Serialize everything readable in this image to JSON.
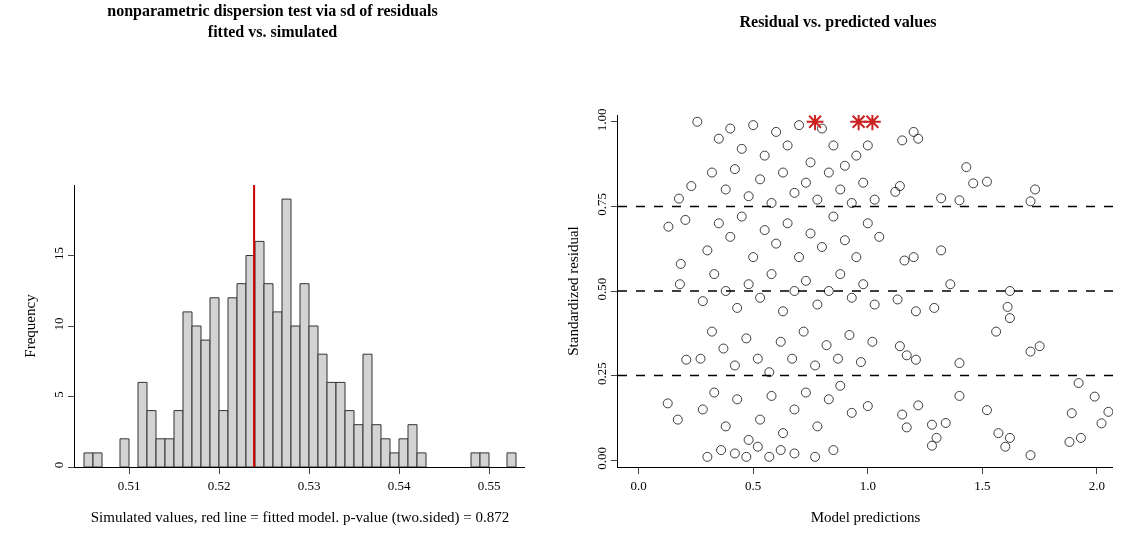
{
  "chart_data": [
    {
      "type": "histogram",
      "title": "nonparametric dispersion test via sd of residuals fitted vs. simulated",
      "xlabel": "Simulated values, red line = fitted model. p-value (two.sided) = 0.872",
      "ylabel": "Frequency",
      "color": "#d3d3d3",
      "bins": [
        0.505,
        0.506,
        0.507,
        0.508,
        0.509,
        0.51,
        0.511,
        0.512,
        0.513,
        0.514,
        0.515,
        0.516,
        0.517,
        0.518,
        0.519,
        0.52,
        0.521,
        0.522,
        0.523,
        0.524,
        0.525,
        0.526,
        0.527,
        0.528,
        0.529,
        0.53,
        0.531,
        0.532,
        0.533,
        0.534,
        0.535,
        0.536,
        0.537,
        0.538,
        0.539,
        0.54,
        0.541,
        0.542,
        0.543,
        0.544,
        0.545,
        0.546,
        0.547,
        0.548,
        0.549,
        0.55,
        0.551,
        0.552,
        0.553
      ],
      "values": [
        1,
        1,
        0,
        0,
        2,
        0,
        6,
        4,
        2,
        2,
        4,
        11,
        10,
        9,
        12,
        4,
        12,
        13,
        15,
        16,
        13,
        11,
        19,
        10,
        13,
        10,
        8,
        6,
        6,
        4,
        3,
        8,
        3,
        2,
        1,
        2,
        3,
        1,
        0,
        0,
        0,
        0,
        0,
        1,
        1,
        0,
        0,
        1
      ],
      "xlim": [
        0.504,
        0.554
      ],
      "xticks": [
        0.51,
        0.52,
        0.53,
        0.54,
        0.55
      ],
      "ylim": [
        0,
        20
      ],
      "yticks": [
        0,
        5,
        10,
        15
      ],
      "ref_lines": [
        {
          "axis": "x",
          "value": 0.5239,
          "color": "#cc0000"
        }
      ],
      "grid": false
    },
    {
      "type": "scatter",
      "title": "Residual vs. predicted values",
      "xlabel": "Model predictions",
      "ylabel": "Standardized residual",
      "series": [
        {
          "color": "#000000",
          "marker": "circle",
          "x": [
            0.127,
            0.13,
            0.176,
            0.18,
            0.184,
            0.171,
            0.204,
            0.208,
            0.23,
            0.256,
            1.15,
            1.2,
            1.22,
            1.43,
            1.46,
            1.52,
            1.32,
            1.4,
            1.73,
            1.71,
            1.32,
            1.36,
            1.62,
            1.61,
            1.62,
            1.56,
            1.29,
            1.21,
            1.13,
            1.16,
            1.2,
            1.4,
            1.71,
            1.75,
            1.4,
            1.92,
            1.99,
            2.05,
            2.02,
            1.89,
            1.88,
            1.93,
            1.71,
            1.62,
            1.6,
            1.57,
            1.52,
            1.28,
            1.34,
            1.3,
            1.28,
            1.22,
            1.15,
            1.17,
            1.14,
            1.17,
            1.21,
            1.12,
            1.14,
            0.35,
            0.4,
            0.45,
            0.5,
            0.55,
            0.6,
            0.65,
            0.7,
            0.75,
            0.8,
            0.85,
            0.9,
            0.95,
            1.0,
            0.32,
            0.38,
            0.42,
            0.48,
            0.53,
            0.58,
            0.63,
            0.68,
            0.73,
            0.78,
            0.83,
            0.88,
            0.93,
            0.98,
            1.03,
            0.3,
            0.35,
            0.4,
            0.45,
            0.5,
            0.55,
            0.6,
            0.65,
            0.7,
            0.75,
            0.8,
            0.85,
            0.9,
            0.95,
            1.0,
            1.05,
            0.28,
            0.33,
            0.38,
            0.43,
            0.48,
            0.53,
            0.58,
            0.63,
            0.68,
            0.73,
            0.78,
            0.83,
            0.88,
            0.93,
            0.98,
            1.03,
            0.27,
            0.32,
            0.37,
            0.42,
            0.47,
            0.52,
            0.57,
            0.62,
            0.67,
            0.72,
            0.77,
            0.82,
            0.87,
            0.92,
            0.97,
            1.02,
            0.28,
            0.33,
            0.38,
            0.43,
            0.48,
            0.53,
            0.58,
            0.63,
            0.68,
            0.73,
            0.78,
            0.83,
            0.88,
            0.93,
            1.0,
            0.3,
            0.36,
            0.42,
            0.47,
            0.52,
            0.57,
            0.62,
            0.68,
            0.77,
            0.85
          ],
          "values": [
            0.168,
            0.69,
            0.773,
            0.52,
            0.58,
            0.12,
            0.71,
            0.297,
            0.81,
            1.0,
            0.945,
            0.97,
            0.95,
            0.866,
            0.818,
            0.823,
            0.774,
            0.768,
            0.8,
            0.765,
            0.62,
            0.52,
            0.5,
            0.453,
            0.42,
            0.38,
            0.45,
            0.44,
            0.475,
            0.59,
            0.6,
            0.287,
            0.321,
            0.337,
            0.19,
            0.228,
            0.188,
            0.143,
            0.109,
            0.139,
            0.054,
            0.066,
            0.015,
            0.066,
            0.04,
            0.08,
            0.148,
            0.105,
            0.11,
            0.066,
            0.043,
            0.162,
            0.135,
            0.097,
            0.337,
            0.31,
            0.297,
            0.793,
            0.81,
            0.95,
            0.98,
            0.92,
            0.99,
            0.9,
            0.97,
            0.93,
            0.99,
            0.88,
            0.98,
            0.93,
            0.87,
            0.9,
            0.93,
            0.85,
            0.8,
            0.86,
            0.78,
            0.83,
            0.76,
            0.85,
            0.79,
            0.82,
            0.77,
            0.85,
            0.8,
            0.76,
            0.82,
            0.77,
            0.62,
            0.7,
            0.66,
            0.72,
            0.6,
            0.68,
            0.64,
            0.7,
            0.6,
            0.67,
            0.63,
            0.72,
            0.65,
            0.6,
            0.7,
            0.66,
            0.47,
            0.55,
            0.5,
            0.45,
            0.52,
            0.48,
            0.55,
            0.44,
            0.5,
            0.53,
            0.46,
            0.5,
            0.55,
            0.48,
            0.52,
            0.46,
            0.3,
            0.38,
            0.33,
            0.28,
            0.36,
            0.3,
            0.26,
            0.35,
            0.3,
            0.38,
            0.28,
            0.34,
            0.3,
            0.37,
            0.29,
            0.35,
            0.15,
            0.2,
            0.1,
            0.18,
            0.06,
            0.12,
            0.19,
            0.08,
            0.15,
            0.2,
            0.1,
            0.18,
            0.22,
            0.14,
            0.16,
            0.01,
            0.03,
            0.02,
            0.01,
            0.04,
            0.01,
            0.03,
            0.02,
            0.01,
            0.03
          ]
        },
        {
          "color": "#cc2222",
          "marker": "cross",
          "x": [
            0.77,
            0.96,
            1.02
          ],
          "values": [
            1.0,
            1.0,
            1.0
          ]
        }
      ],
      "xlim": [
        -0.09,
        2.07
      ],
      "xticks": [
        {
          "value": 0,
          "label": "0.0"
        },
        {
          "value": 0.5,
          "label": "0.5"
        },
        {
          "value": 1,
          "label": "1.0"
        },
        {
          "value": 1.5,
          "label": "1.5"
        },
        {
          "value": 2,
          "label": "2.0"
        }
      ],
      "ylim": [
        -0.02,
        1.02
      ],
      "yticks": [
        {
          "value": 0,
          "label": "0.00"
        },
        {
          "value": 0.25,
          "label": "0.25"
        },
        {
          "value": 0.5,
          "label": "0.50"
        },
        {
          "value": 0.75,
          "label": "0.75"
        },
        {
          "value": 1,
          "label": "1.00"
        }
      ],
      "ref_lines": [
        {
          "axis": "y",
          "value": 0.25,
          "color": "#000000",
          "line_style": "dashed"
        },
        {
          "axis": "y",
          "value": 0.5,
          "color": "#000000",
          "line_style": "dashed"
        },
        {
          "axis": "y",
          "value": 0.75,
          "color": "#000000",
          "line_style": "dashed"
        }
      ],
      "grid": false
    }
  ]
}
